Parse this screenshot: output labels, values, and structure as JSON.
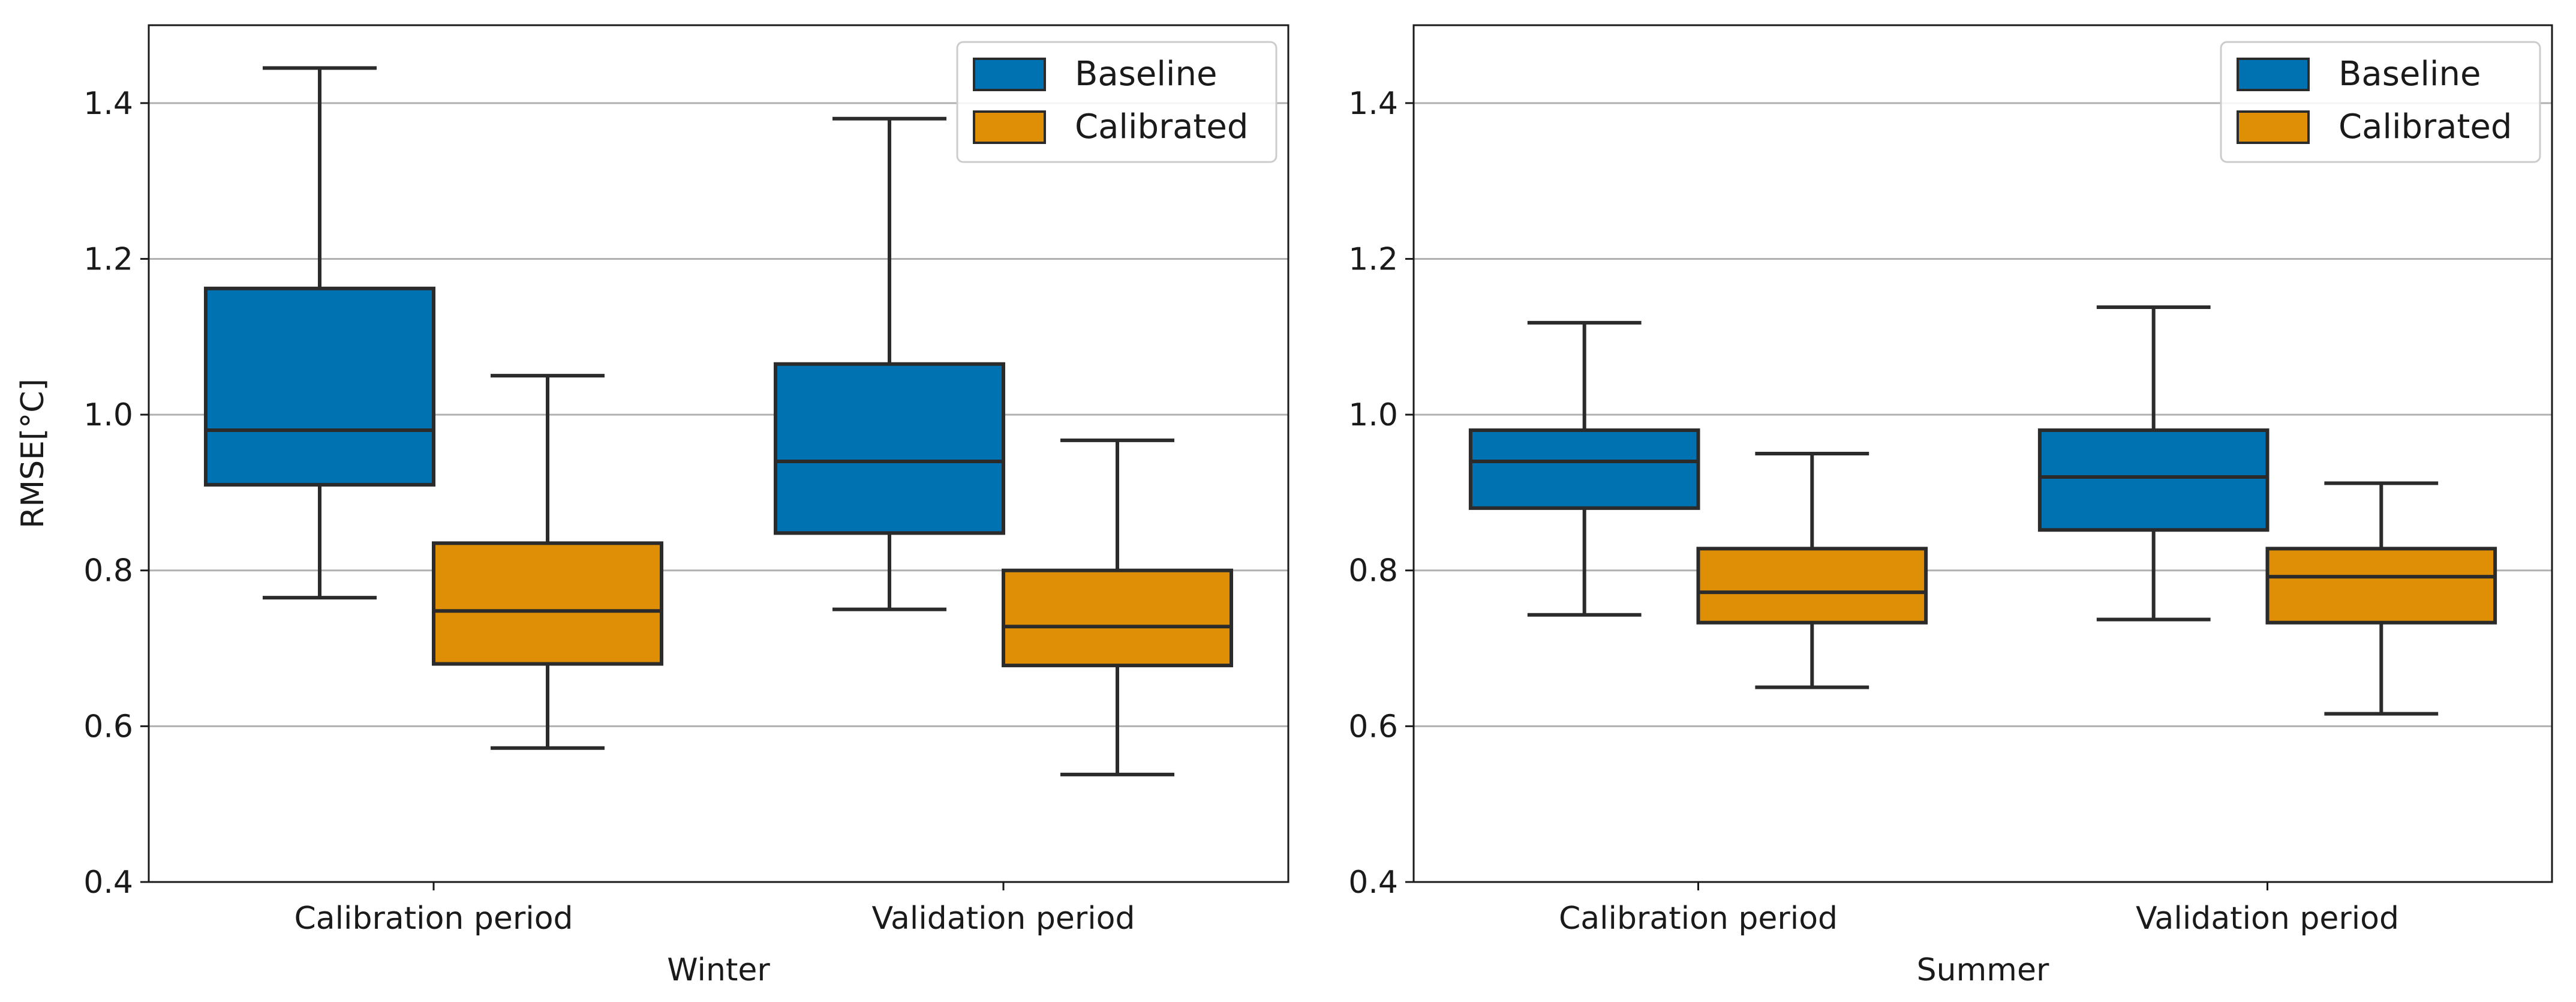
{
  "chart_data": [
    {
      "type": "boxplot",
      "title": "",
      "xlabel": "Winter",
      "ylabel": "RMSE[°C]",
      "ylim": [
        0.4,
        1.5
      ],
      "yticks": [
        0.4,
        0.6,
        0.8,
        1.0,
        1.2,
        1.4
      ],
      "ytick_labels": [
        "0.4",
        "0.6",
        "0.8",
        "1.0",
        "1.2",
        "1.4"
      ],
      "grid": "horizontal",
      "legend_position": "top-right",
      "categories": [
        "Calibration period",
        "Validation period"
      ],
      "series": [
        {
          "name": "Baseline",
          "color": "#0072B2",
          "boxes": [
            {
              "whisker_low": 0.765,
              "q1": 0.91,
              "median": 0.98,
              "q3": 1.162,
              "whisker_high": 1.445
            },
            {
              "whisker_low": 0.75,
              "q1": 0.848,
              "median": 0.94,
              "q3": 1.065,
              "whisker_high": 1.38
            }
          ]
        },
        {
          "name": "Calibrated",
          "color": "#DE8F05",
          "boxes": [
            {
              "whisker_low": 0.572,
              "q1": 0.68,
              "median": 0.748,
              "q3": 0.835,
              "whisker_high": 1.05
            },
            {
              "whisker_low": 0.538,
              "q1": 0.678,
              "median": 0.728,
              "q3": 0.8,
              "whisker_high": 0.967
            }
          ]
        }
      ]
    },
    {
      "type": "boxplot",
      "title": "",
      "xlabel": "Summer",
      "ylabel": "",
      "ylim": [
        0.4,
        1.5
      ],
      "yticks": [
        0.4,
        0.6,
        0.8,
        1.0,
        1.2,
        1.4
      ],
      "ytick_labels": [
        "0.4",
        "0.6",
        "0.8",
        "1.0",
        "1.2",
        "1.4"
      ],
      "grid": "horizontal",
      "legend_position": "top-right",
      "categories": [
        "Calibration period",
        "Validation period"
      ],
      "series": [
        {
          "name": "Baseline",
          "color": "#0072B2",
          "boxes": [
            {
              "whisker_low": 0.743,
              "q1": 0.88,
              "median": 0.94,
              "q3": 0.98,
              "whisker_high": 1.118
            },
            {
              "whisker_low": 0.737,
              "q1": 0.852,
              "median": 0.92,
              "q3": 0.98,
              "whisker_high": 1.138
            }
          ]
        },
        {
          "name": "Calibrated",
          "color": "#DE8F05",
          "boxes": [
            {
              "whisker_low": 0.65,
              "q1": 0.733,
              "median": 0.772,
              "q3": 0.828,
              "whisker_high": 0.95
            },
            {
              "whisker_low": 0.616,
              "q1": 0.733,
              "median": 0.792,
              "q3": 0.828,
              "whisker_high": 0.912
            }
          ]
        }
      ]
    }
  ]
}
